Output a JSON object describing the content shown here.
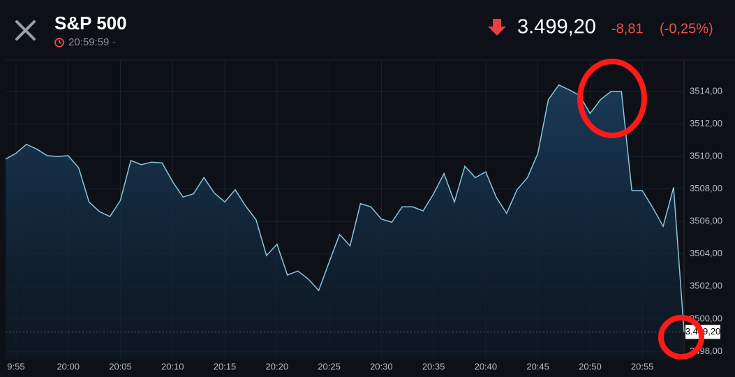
{
  "header": {
    "title": "S&P 500",
    "time": "20:59:59",
    "time_suffix": "-",
    "price": "3.499,20",
    "change": "-8,81",
    "change_pct": "(-0,25%)"
  },
  "chart_data": {
    "type": "area",
    "color": "#8cc4e0",
    "grid": true,
    "x": [
      "19:54",
      "19:55",
      "19:56",
      "19:57",
      "19:58",
      "19:59",
      "20:00",
      "20:01",
      "20:02",
      "20:03",
      "20:04",
      "20:05",
      "20:06",
      "20:07",
      "20:08",
      "20:09",
      "20:10",
      "20:11",
      "20:12",
      "20:13",
      "20:14",
      "20:15",
      "20:16",
      "20:17",
      "20:18",
      "20:19",
      "20:20",
      "20:21",
      "20:22",
      "20:23",
      "20:24",
      "20:25",
      "20:26",
      "20:27",
      "20:28",
      "20:29",
      "20:30",
      "20:31",
      "20:32",
      "20:33",
      "20:34",
      "20:35",
      "20:36",
      "20:37",
      "20:38",
      "20:39",
      "20:40",
      "20:41",
      "20:42",
      "20:43",
      "20:44",
      "20:45",
      "20:46",
      "20:47",
      "20:48",
      "20:49",
      "20:50",
      "20:51",
      "20:52",
      "20:53",
      "20:54",
      "20:55",
      "20:56",
      "20:57",
      "20:58",
      "20:59"
    ],
    "values": [
      3509.84,
      3510.2,
      3510.75,
      3510.45,
      3510.05,
      3510.0,
      3510.05,
      3509.3,
      3507.2,
      3506.6,
      3506.3,
      3507.3,
      3509.75,
      3509.5,
      3509.65,
      3509.6,
      3508.45,
      3507.5,
      3507.7,
      3508.7,
      3507.75,
      3507.2,
      3507.95,
      3506.95,
      3506.1,
      3503.9,
      3504.6,
      3502.7,
      3502.95,
      3502.45,
      3501.75,
      3503.5,
      3505.2,
      3504.5,
      3507.1,
      3506.9,
      3506.15,
      3505.95,
      3506.9,
      3506.9,
      3506.65,
      3507.7,
      3508.95,
      3507.2,
      3509.4,
      3508.7,
      3509.05,
      3507.5,
      3506.5,
      3507.95,
      3508.7,
      3510.2,
      3513.5,
      3514.4,
      3514.1,
      3513.75,
      3512.65,
      3513.5,
      3514.0,
      3514.0,
      3507.9,
      3507.9,
      3506.85,
      3505.7,
      3508.1,
      3499.2
    ],
    "last_label": "3.499,20",
    "xlim": [
      "19:54",
      "20:59"
    ],
    "xticks": [
      {
        "value": "19:55",
        "label": "9:55"
      },
      "20:00",
      "20:05",
      "20:10",
      "20:15",
      "20:20",
      "20:25",
      "20:30",
      "20:35",
      "20:40",
      "20:45",
      "20:50",
      "20:55"
    ],
    "ylim": [
      3497.5,
      3515.85
    ],
    "yticks": [
      {
        "value": 3498,
        "label": "3498,00"
      },
      {
        "value": 3500,
        "label": "3500,00"
      },
      {
        "value": 3502,
        "label": "3502,00"
      },
      {
        "value": 3504,
        "label": "3504,00"
      },
      {
        "value": 3506,
        "label": "3506,00"
      },
      {
        "value": 3508,
        "label": "3508,00"
      },
      {
        "value": 3510,
        "label": "3510,00"
      },
      {
        "value": 3512,
        "label": "3512,00"
      },
      {
        "value": 3514,
        "label": "3514,00"
      }
    ]
  }
}
